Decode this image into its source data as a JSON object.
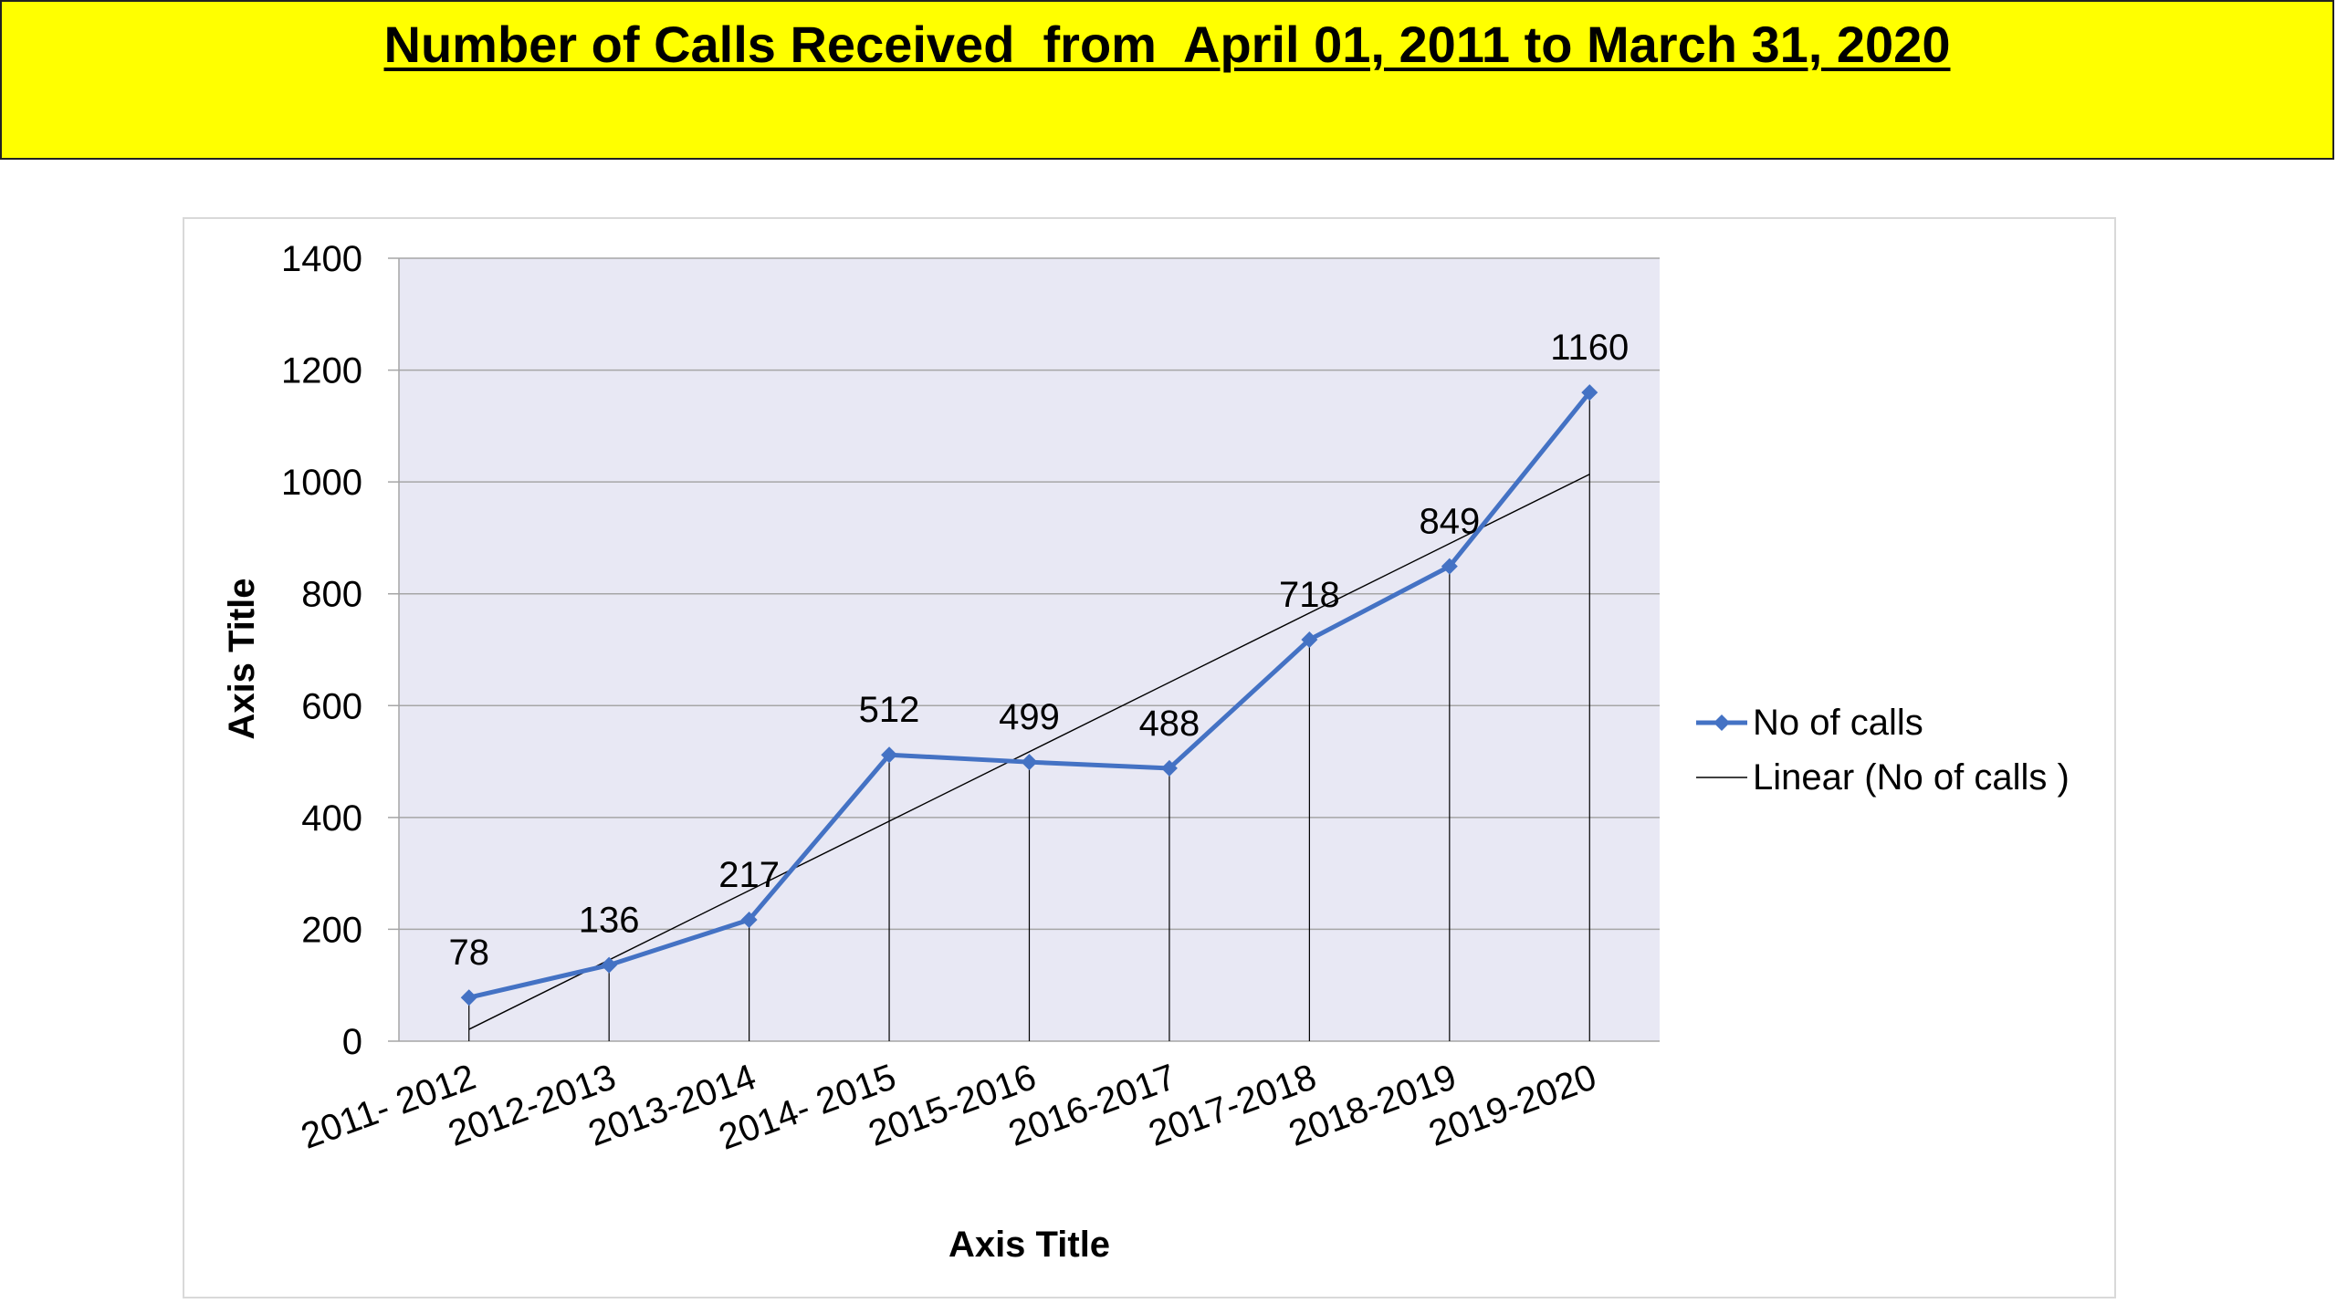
{
  "title": "Number of Calls Received  from  April 01, 2011 to March 31, 2020",
  "colors": {
    "banner": "#ffff00",
    "series": "#4472c4",
    "trendline": "#000000",
    "plot_background": "#e8e8f4",
    "gridline": "#a6a6a6"
  },
  "legend": {
    "series_label": "No of calls",
    "trend_label": "Linear (No of calls )"
  },
  "chart_data": {
    "type": "line",
    "title": "Number of Calls Received  from  April 01, 2011 to March 31, 2020",
    "xlabel": "Axis Title",
    "ylabel": "Axis Title",
    "categories": [
      "2011- 2012",
      "2012-2013",
      "2013-2014",
      "2014- 2015",
      "2015-2016",
      "2016-2017",
      "2017-2018",
      "2018-2019",
      "2019-2020"
    ],
    "series": [
      {
        "name": "No of calls",
        "values": [
          78,
          136,
          217,
          512,
          499,
          488,
          718,
          849,
          1160
        ],
        "marker": "diamond",
        "data_labels": true
      }
    ],
    "trendline": {
      "name": "Linear (No of calls )",
      "type": "linear"
    },
    "ylim": [
      0,
      1400
    ],
    "yticks": [
      0,
      200,
      400,
      600,
      800,
      1000,
      1200,
      1400
    ],
    "drop_lines": true,
    "grid": true,
    "legend_position": "right"
  }
}
